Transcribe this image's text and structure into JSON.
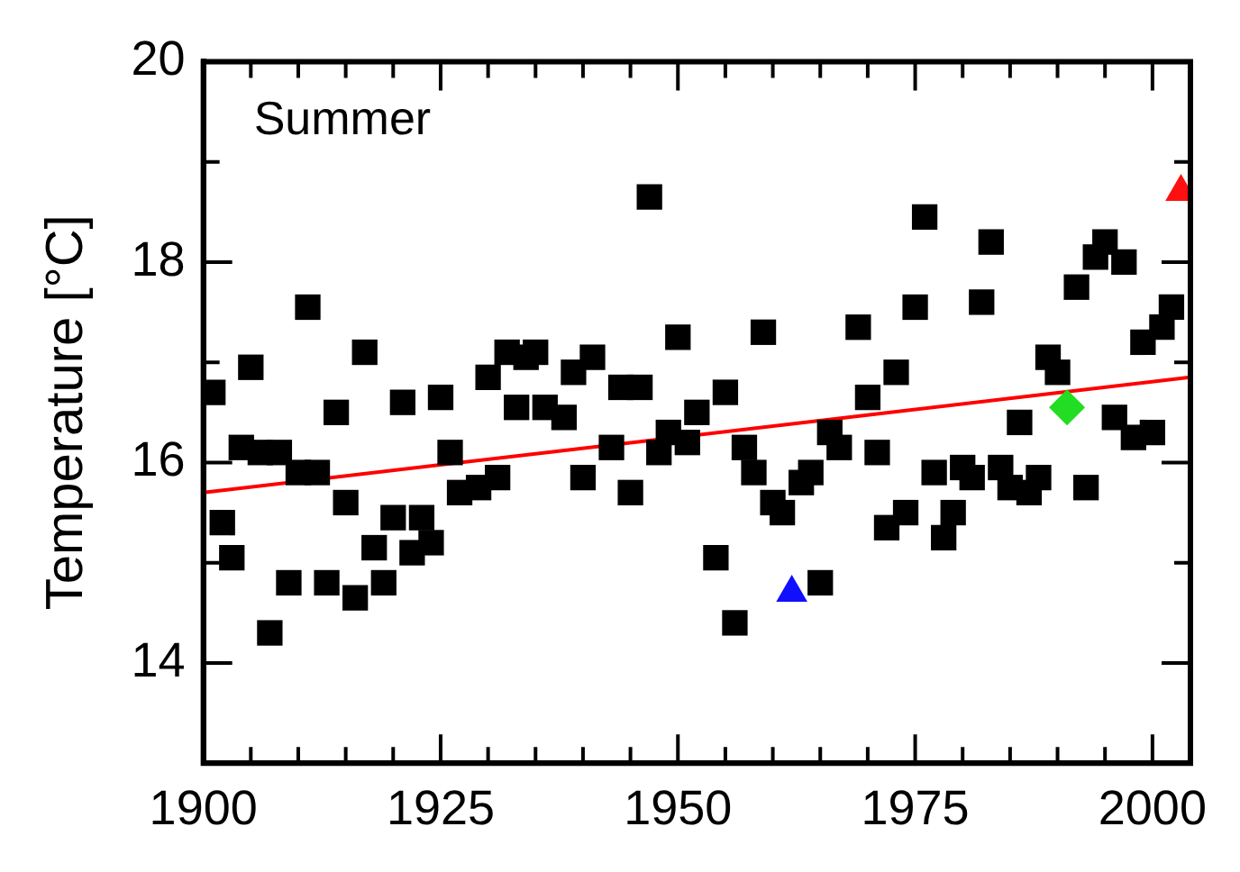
{
  "chart_data": {
    "type": "scatter",
    "title": "Summer",
    "ylabel": "Temperature [°C]",
    "xlim": [
      1900,
      2004
    ],
    "ylim": [
      13,
      20
    ],
    "xticks": [
      1900,
      {
        "value": 1905,
        "label": null
      },
      {
        "value": 1910,
        "label": null
      },
      {
        "value": 1915,
        "label": null
      },
      {
        "value": 1920,
        "label": null
      },
      1925,
      {
        "value": 1930,
        "label": null
      },
      {
        "value": 1935,
        "label": null
      },
      {
        "value": 1940,
        "label": null
      },
      {
        "value": 1945,
        "label": null
      },
      1950,
      {
        "value": 1955,
        "label": null
      },
      {
        "value": 1960,
        "label": null
      },
      {
        "value": 1965,
        "label": null
      },
      {
        "value": 1970,
        "label": null
      },
      1975,
      {
        "value": 1980,
        "label": null
      },
      {
        "value": 1985,
        "label": null
      },
      {
        "value": 1990,
        "label": null
      },
      {
        "value": 1995,
        "label": null
      },
      2000
    ],
    "yticks": [
      14,
      {
        "value": 15,
        "label": null
      },
      16,
      {
        "value": 17,
        "label": null
      },
      18,
      {
        "value": 19,
        "label": null
      },
      20
    ],
    "grid": false,
    "legend": false,
    "series": [
      {
        "marker": "square",
        "color": "#000000",
        "x": [
          1901,
          1902,
          1903,
          1904,
          1905,
          1906,
          1907,
          1908,
          1909,
          1910,
          1911,
          1912,
          1913,
          1914,
          1915,
          1916,
          1917,
          1918,
          1919,
          1920,
          1921,
          1922,
          1923,
          1924,
          1925,
          1926,
          1927,
          1929,
          1930,
          1931,
          1932,
          1933,
          1934,
          1935,
          1936,
          1938,
          1939,
          1940,
          1941,
          1943,
          1944,
          1945,
          1946,
          1947,
          1948,
          1949,
          1950,
          1951,
          1952,
          1954,
          1955,
          1956,
          1957,
          1958,
          1959,
          1960,
          1961,
          1963,
          1964,
          1965,
          1966,
          1967,
          1969,
          1970,
          1971,
          1972,
          1973,
          1974,
          1975,
          1976,
          1977,
          1978,
          1979,
          1980,
          1981,
          1982,
          1983,
          1984,
          1985,
          1986,
          1987,
          1988,
          1989,
          1990,
          1992,
          1993,
          1994,
          1995,
          1996,
          1997,
          1998,
          1999,
          2000,
          2001,
          2002
        ],
        "values": [
          16.7,
          15.4,
          15.05,
          16.15,
          16.95,
          16.1,
          14.3,
          16.1,
          14.8,
          15.9,
          17.55,
          15.9,
          14.8,
          16.5,
          15.6,
          14.65,
          17.1,
          15.15,
          14.8,
          15.45,
          16.6,
          15.1,
          15.45,
          15.2,
          16.65,
          16.1,
          15.7,
          15.75,
          16.85,
          15.85,
          17.1,
          16.55,
          17.05,
          17.1,
          16.55,
          16.45,
          16.9,
          15.85,
          17.05,
          16.15,
          16.75,
          15.7,
          16.75,
          18.65,
          16.1,
          16.3,
          17.25,
          16.2,
          16.5,
          15.05,
          16.7,
          14.4,
          16.15,
          15.9,
          17.3,
          15.6,
          15.5,
          15.8,
          15.9,
          14.8,
          16.3,
          16.15,
          17.35,
          16.65,
          16.1,
          15.35,
          16.9,
          15.5,
          17.55,
          18.45,
          15.9,
          15.25,
          15.5,
          15.95,
          15.85,
          17.6,
          18.2,
          15.95,
          15.75,
          16.4,
          15.7,
          15.85,
          17.05,
          16.9,
          17.75,
          15.75,
          18.05,
          18.2,
          16.45,
          18.0,
          16.25,
          17.2,
          16.3,
          17.35,
          17.55
        ]
      },
      {
        "type": "scatter",
        "marker": "triangle",
        "color": "#1010ff",
        "x": [
          1962
        ],
        "values": [
          14.7
        ]
      },
      {
        "type": "scatter",
        "marker": "diamond",
        "color": "#22dd22",
        "x": [
          1991
        ],
        "values": [
          16.55
        ]
      },
      {
        "type": "scatter",
        "marker": "triangle",
        "color": "#ff1010",
        "x": [
          2003
        ],
        "values": [
          18.7
        ]
      },
      {
        "type": "line",
        "marker": "none",
        "color": "#ff0000",
        "x": [
          1900,
          2004
        ],
        "values": [
          15.7,
          16.85
        ]
      }
    ]
  }
}
